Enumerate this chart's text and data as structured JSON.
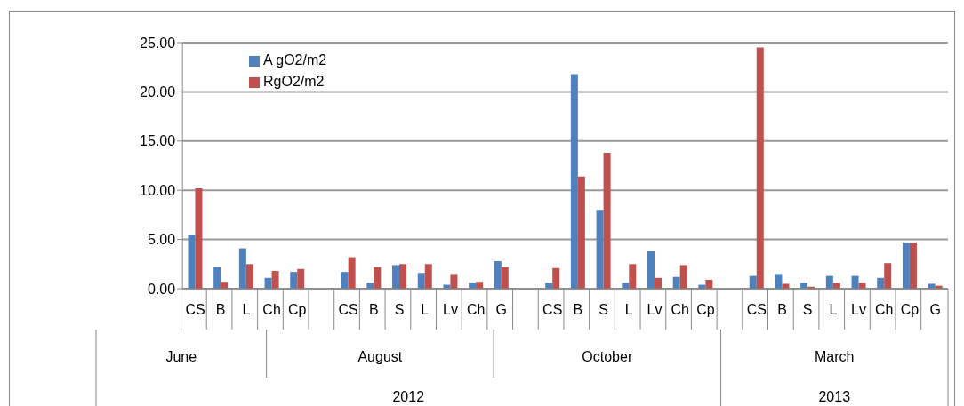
{
  "chart_data": {
    "type": "bar",
    "categories": [
      "CS",
      "B",
      "L",
      "Ch",
      "Cp",
      null,
      "CS",
      "B",
      "S",
      "L",
      "Lv",
      "Ch",
      "G",
      null,
      "CS",
      "B",
      "S",
      "L",
      "Lv",
      "Ch",
      "Cp",
      null,
      "CS",
      "B",
      "S",
      "L",
      "Lv",
      "Ch",
      "Cp",
      "G"
    ],
    "series": [
      {
        "name": "A gO2/m2",
        "color": "#4f81bd",
        "values": [
          5.5,
          2.2,
          4.1,
          1.1,
          1.7,
          null,
          1.7,
          0.6,
          2.4,
          1.6,
          0.4,
          0.6,
          2.8,
          null,
          0.6,
          21.8,
          8.0,
          0.6,
          3.8,
          1.2,
          0.4,
          null,
          1.3,
          1.5,
          0.6,
          1.3,
          1.3,
          1.1,
          4.7,
          0.5
        ]
      },
      {
        "name": "RgO2/m2",
        "color": "#c0504d",
        "values": [
          10.2,
          0.7,
          2.5,
          1.8,
          2.0,
          null,
          3.2,
          2.2,
          2.5,
          2.5,
          1.5,
          0.7,
          2.2,
          null,
          2.1,
          11.4,
          13.8,
          2.5,
          1.1,
          2.4,
          0.9,
          null,
          24.5,
          0.5,
          0.2,
          0.6,
          0.6,
          2.6,
          4.7,
          0.3
        ]
      }
    ],
    "ylim": [
      0,
      25
    ],
    "yticks": [
      {
        "value": 0,
        "label": "0.00"
      },
      {
        "value": 5,
        "label": "5.00"
      },
      {
        "value": 10,
        "label": "10.00"
      },
      {
        "value": 15,
        "label": "15.00"
      },
      {
        "value": 20,
        "label": "20.00"
      },
      {
        "value": 25,
        "label": "25.00"
      }
    ],
    "grid": "y",
    "legend": "top left",
    "annotations": [
      "June",
      "August",
      "October",
      "March",
      "2012",
      "2013"
    ]
  }
}
